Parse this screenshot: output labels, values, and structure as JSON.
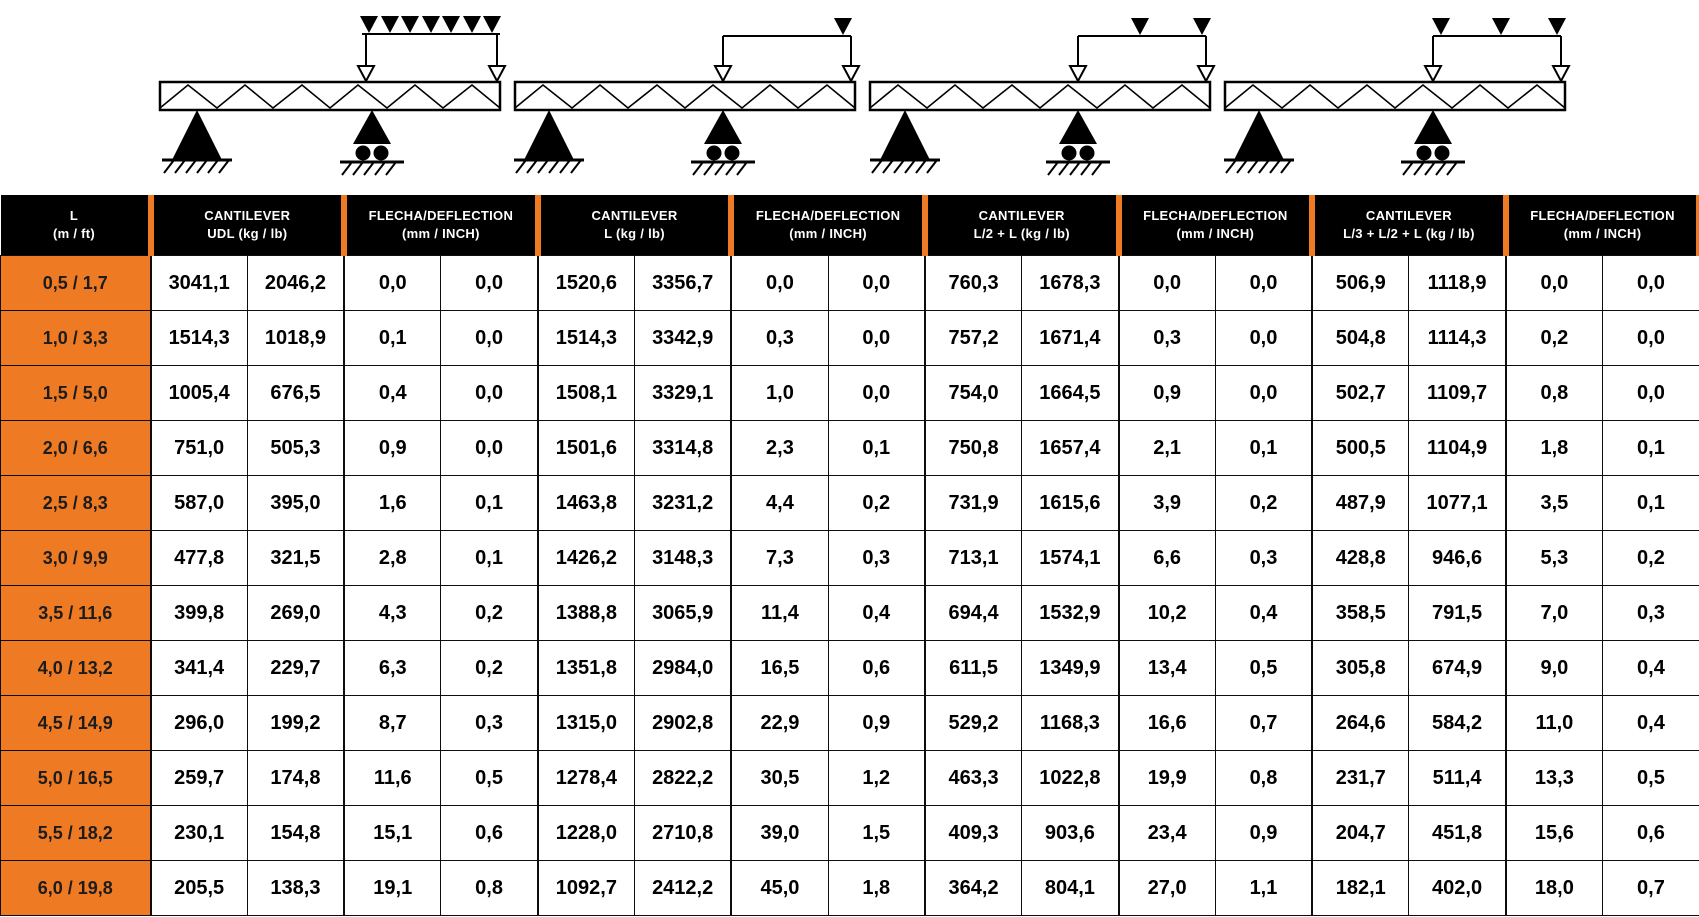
{
  "colors": {
    "accent_orange": "#EE7A23",
    "header_bg": "#000000",
    "value_text": "#000000"
  },
  "diagrams": [
    {
      "name": "cantilever-udl",
      "load_type": "uniformly distributed load on cantilever",
      "load_count": 7
    },
    {
      "name": "cantilever-point-load-L",
      "load_type": "point load at L",
      "load_count": 1
    },
    {
      "name": "cantilever-loads-L2-L",
      "load_type": "point loads at L/2 and L",
      "load_count": 2
    },
    {
      "name": "cantilever-loads-L3-L2-L",
      "load_type": "point loads at L/3, L/2 and L",
      "load_count": 3
    }
  ],
  "table": {
    "corner": {
      "line1": "L",
      "line2": "(m / ft)"
    },
    "groups": [
      {
        "title": "CANTILEVER",
        "subtitle": "UDL (kg / lb)"
      },
      {
        "title": "FLECHA/DEFLECTION",
        "subtitle": "(mm / INCH)"
      },
      {
        "title": "CANTILEVER",
        "subtitle": "L (kg / lb)"
      },
      {
        "title": "FLECHA/DEFLECTION",
        "subtitle": "(mm / INCH)"
      },
      {
        "title": "CANTILEVER",
        "subtitle": "L/2 + L (kg / lb)"
      },
      {
        "title": "FLECHA/DEFLECTION",
        "subtitle": "(mm / INCH)"
      },
      {
        "title": "CANTILEVER",
        "subtitle": "L/3 + L/2 + L (kg / lb)"
      },
      {
        "title": "FLECHA/DEFLECTION",
        "subtitle": "(mm / INCH)"
      }
    ],
    "rows": [
      {
        "label": "0,5 / 1,7",
        "values": [
          "3041,1",
          "2046,2",
          "0,0",
          "0,0",
          "1520,6",
          "3356,7",
          "0,0",
          "0,0",
          "760,3",
          "1678,3",
          "0,0",
          "0,0",
          "506,9",
          "1118,9",
          "0,0",
          "0,0"
        ]
      },
      {
        "label": "1,0 / 3,3",
        "values": [
          "1514,3",
          "1018,9",
          "0,1",
          "0,0",
          "1514,3",
          "3342,9",
          "0,3",
          "0,0",
          "757,2",
          "1671,4",
          "0,3",
          "0,0",
          "504,8",
          "1114,3",
          "0,2",
          "0,0"
        ]
      },
      {
        "label": "1,5 / 5,0",
        "values": [
          "1005,4",
          "676,5",
          "0,4",
          "0,0",
          "1508,1",
          "3329,1",
          "1,0",
          "0,0",
          "754,0",
          "1664,5",
          "0,9",
          "0,0",
          "502,7",
          "1109,7",
          "0,8",
          "0,0"
        ]
      },
      {
        "label": "2,0 / 6,6",
        "values": [
          "751,0",
          "505,3",
          "0,9",
          "0,0",
          "1501,6",
          "3314,8",
          "2,3",
          "0,1",
          "750,8",
          "1657,4",
          "2,1",
          "0,1",
          "500,5",
          "1104,9",
          "1,8",
          "0,1"
        ]
      },
      {
        "label": "2,5 / 8,3",
        "values": [
          "587,0",
          "395,0",
          "1,6",
          "0,1",
          "1463,8",
          "3231,2",
          "4,4",
          "0,2",
          "731,9",
          "1615,6",
          "3,9",
          "0,2",
          "487,9",
          "1077,1",
          "3,5",
          "0,1"
        ]
      },
      {
        "label": "3,0 / 9,9",
        "values": [
          "477,8",
          "321,5",
          "2,8",
          "0,1",
          "1426,2",
          "3148,3",
          "7,3",
          "0,3",
          "713,1",
          "1574,1",
          "6,6",
          "0,3",
          "428,8",
          "946,6",
          "5,3",
          "0,2"
        ]
      },
      {
        "label": "3,5 / 11,6",
        "values": [
          "399,8",
          "269,0",
          "4,3",
          "0,2",
          "1388,8",
          "3065,9",
          "11,4",
          "0,4",
          "694,4",
          "1532,9",
          "10,2",
          "0,4",
          "358,5",
          "791,5",
          "7,0",
          "0,3"
        ]
      },
      {
        "label": "4,0 / 13,2",
        "values": [
          "341,4",
          "229,7",
          "6,3",
          "0,2",
          "1351,8",
          "2984,0",
          "16,5",
          "0,6",
          "611,5",
          "1349,9",
          "13,4",
          "0,5",
          "305,8",
          "674,9",
          "9,0",
          "0,4"
        ]
      },
      {
        "label": "4,5 / 14,9",
        "values": [
          "296,0",
          "199,2",
          "8,7",
          "0,3",
          "1315,0",
          "2902,8",
          "22,9",
          "0,9",
          "529,2",
          "1168,3",
          "16,6",
          "0,7",
          "264,6",
          "584,2",
          "11,0",
          "0,4"
        ]
      },
      {
        "label": "5,0 / 16,5",
        "values": [
          "259,7",
          "174,8",
          "11,6",
          "0,5",
          "1278,4",
          "2822,2",
          "30,5",
          "1,2",
          "463,3",
          "1022,8",
          "19,9",
          "0,8",
          "231,7",
          "511,4",
          "13,3",
          "0,5"
        ]
      },
      {
        "label": "5,5 / 18,2",
        "values": [
          "230,1",
          "154,8",
          "15,1",
          "0,6",
          "1228,0",
          "2710,8",
          "39,0",
          "1,5",
          "409,3",
          "903,6",
          "23,4",
          "0,9",
          "204,7",
          "451,8",
          "15,6",
          "0,6"
        ]
      },
      {
        "label": "6,0 / 19,8",
        "values": [
          "205,5",
          "138,3",
          "19,1",
          "0,8",
          "1092,7",
          "2412,2",
          "45,0",
          "1,8",
          "364,2",
          "804,1",
          "27,0",
          "1,1",
          "182,1",
          "402,0",
          "18,0",
          "0,7"
        ]
      }
    ]
  }
}
